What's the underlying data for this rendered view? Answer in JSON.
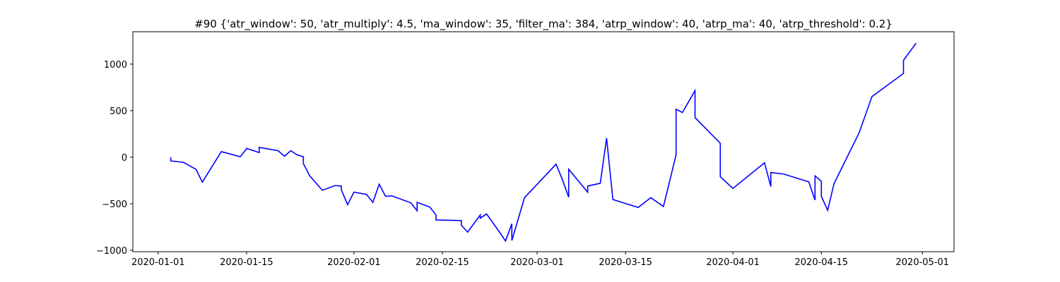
{
  "chart_data": {
    "type": "line",
    "title": "#90 {'atr_window': 50, 'atr_multiply': 4.5, 'ma_window': 35, 'filter_ma': 384, 'atrp_window': 40, 'atrp_ma': 40, 'atrp_threshold': 0.2}",
    "color": "#0000ff",
    "x": [
      "2020-01-03",
      "2020-01-03",
      "2020-01-05",
      "2020-01-07",
      "2020-01-08",
      "2020-01-11",
      "2020-01-14",
      "2020-01-15",
      "2020-01-15",
      "2020-01-17",
      "2020-01-17",
      "2020-01-20",
      "2020-01-21",
      "2020-01-22",
      "2020-01-23",
      "2020-01-24",
      "2020-01-24",
      "2020-01-25",
      "2020-01-27",
      "2020-01-29",
      "2020-01-30",
      "2020-01-30",
      "2020-01-31",
      "2020-02-01",
      "2020-02-03",
      "2020-02-04",
      "2020-02-05",
      "2020-02-06",
      "2020-02-07",
      "2020-02-10",
      "2020-02-11",
      "2020-02-11",
      "2020-02-13",
      "2020-02-14",
      "2020-02-14",
      "2020-02-18",
      "2020-02-18",
      "2020-02-19",
      "2020-02-21",
      "2020-02-21",
      "2020-02-22",
      "2020-02-24",
      "2020-02-25",
      "2020-02-26",
      "2020-02-26",
      "2020-02-28",
      "2020-03-04",
      "2020-03-05",
      "2020-03-06",
      "2020-03-06",
      "2020-03-09",
      "2020-03-09",
      "2020-03-11",
      "2020-03-12",
      "2020-03-13",
      "2020-03-17",
      "2020-03-19",
      "2020-03-21",
      "2020-03-23",
      "2020-03-23",
      "2020-03-24",
      "2020-03-26",
      "2020-03-26",
      "2020-03-30",
      "2020-03-30",
      "2020-04-01",
      "2020-04-06",
      "2020-04-07",
      "2020-04-07",
      "2020-04-09",
      "2020-04-13",
      "2020-04-14",
      "2020-04-14",
      "2020-04-15",
      "2020-04-15",
      "2020-04-16",
      "2020-04-17",
      "2020-04-21",
      "2020-04-23",
      "2020-04-28",
      "2020-04-28",
      "2020-04-30"
    ],
    "values": [
      0,
      -40,
      -55,
      -130,
      -268,
      60,
      5,
      90,
      95,
      50,
      105,
      70,
      10,
      70,
      25,
      5,
      -70,
      -200,
      -355,
      -305,
      -310,
      -350,
      -510,
      -375,
      -400,
      -485,
      -290,
      -420,
      -415,
      -490,
      -575,
      -485,
      -535,
      -620,
      -675,
      -680,
      -730,
      -805,
      -620,
      -655,
      -610,
      -800,
      -900,
      -715,
      -895,
      -435,
      -75,
      -240,
      -430,
      -130,
      -375,
      -310,
      -280,
      205,
      -455,
      -540,
      -435,
      -530,
      25,
      515,
      480,
      715,
      425,
      150,
      -210,
      -335,
      -60,
      -315,
      -165,
      -180,
      -265,
      -460,
      -200,
      -260,
      -420,
      -570,
      -285,
      265,
      650,
      900,
      1040,
      1225
    ],
    "xlim": [
      "2019-12-28",
      "2020-05-06"
    ],
    "xticks": [
      "2020-01-01",
      "2020-01-15",
      "2020-02-01",
      "2020-02-15",
      "2020-03-01",
      "2020-03-15",
      "2020-04-01",
      "2020-04-15",
      "2020-05-01"
    ],
    "ylim": [
      -1015,
      1348
    ],
    "yticks": [
      {
        "value": -1000,
        "label": "−1000"
      },
      {
        "value": -500,
        "label": "−500"
      },
      0,
      500,
      1000
    ]
  }
}
